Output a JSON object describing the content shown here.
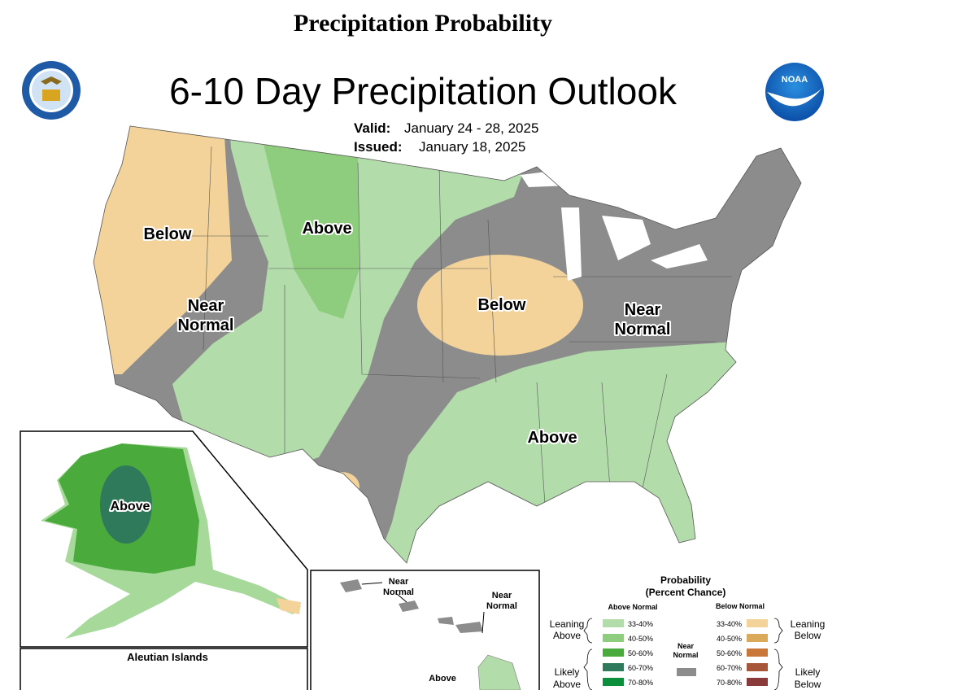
{
  "header": {
    "title": "Precipitation Probability"
  },
  "map": {
    "title": "6-10 Day Precipitation Outlook",
    "valid_label": "Valid:",
    "valid": "January 24 - 28, 2025",
    "issued_label": "Issued:",
    "issued": "January 18, 2025",
    "noaa_logo": "NOAA",
    "regions": [
      {
        "lines": [
          "Below"
        ]
      },
      {
        "lines": [
          "Above"
        ]
      },
      {
        "lines": [
          "Near",
          "Normal"
        ]
      },
      {
        "lines": [
          "Below"
        ]
      },
      {
        "lines": [
          "Near",
          "Normal"
        ]
      },
      {
        "lines": [
          "Above"
        ]
      }
    ],
    "alaska": {
      "label": "Above"
    },
    "aleutian": {
      "title": "Aleutian Islands"
    },
    "hawaii": {
      "labels": [
        [
          "Near",
          "Normal"
        ],
        [
          "Near",
          "Normal"
        ],
        [
          "Above"
        ]
      ]
    }
  },
  "legend": {
    "title": [
      "Probability",
      "(Percent Chance)"
    ],
    "above_header": "Above Normal",
    "below_header": "Below Normal",
    "above_groups": [
      [
        "Leaning",
        "Above"
      ],
      [
        "Likely",
        "Above"
      ]
    ],
    "near": [
      "Near",
      "Normal"
    ],
    "below_groups": [
      [
        "Leaning",
        "Below"
      ],
      [
        "Likely",
        "Below"
      ]
    ],
    "above_bins": [
      "33-40%",
      "40-50%",
      "50-60%",
      "60-70%",
      "70-80%"
    ],
    "below_bins": [
      "33-40%",
      "40-50%",
      "50-60%",
      "60-70%",
      "70-80%"
    ]
  }
}
